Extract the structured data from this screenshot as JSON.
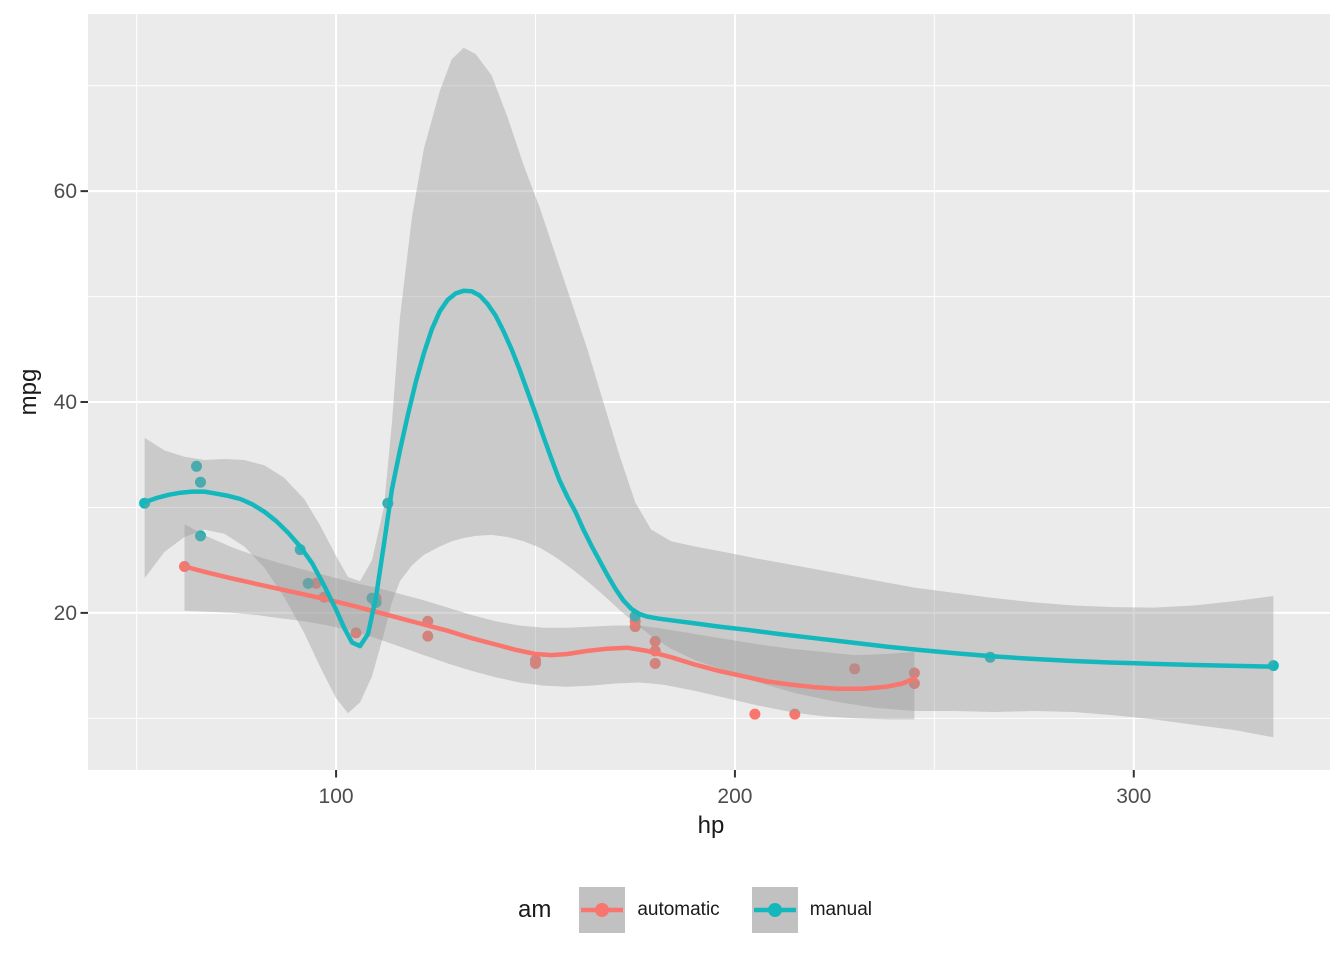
{
  "chart_data": {
    "type": "scatter",
    "title": "",
    "xlabel": "hp",
    "ylabel": "mpg",
    "xlim": [
      37.8,
      349.2
    ],
    "ylim": [
      5.1,
      76.8
    ],
    "x_ticks": [
      {
        "value": 100,
        "label": "100"
      },
      {
        "value": 200,
        "label": "200"
      },
      {
        "value": 300,
        "label": "300"
      }
    ],
    "y_ticks": [
      {
        "value": 20,
        "label": "20"
      },
      {
        "value": 40,
        "label": "40"
      },
      {
        "value": 60,
        "label": "60"
      }
    ],
    "x_minor": [
      50,
      150,
      250
    ],
    "y_minor": [
      10,
      30,
      50,
      70
    ],
    "grid": true,
    "legend_position": "bottom",
    "series": [
      {
        "name": "automatic",
        "color": "#F8766D",
        "points": [
          [
            110,
            21.4
          ],
          [
            175,
            18.7
          ],
          [
            105,
            18.1
          ],
          [
            245,
            14.3
          ],
          [
            62,
            24.4
          ],
          [
            95,
            22.8
          ],
          [
            123,
            19.2
          ],
          [
            123,
            17.8
          ],
          [
            180,
            16.4
          ],
          [
            180,
            17.3
          ],
          [
            180,
            15.2
          ],
          [
            205,
            10.4
          ],
          [
            215,
            10.4
          ],
          [
            230,
            14.7
          ],
          [
            150,
            15.5
          ],
          [
            150,
            15.2
          ],
          [
            245,
            13.3
          ],
          [
            175,
            19.2
          ],
          [
            97,
            21.5
          ]
        ],
        "smooth": [
          [
            62,
            24.4
          ],
          [
            68,
            23.8
          ],
          [
            74,
            23.25
          ],
          [
            80,
            22.75
          ],
          [
            86,
            22.25
          ],
          [
            92,
            21.75
          ],
          [
            98,
            21.25
          ],
          [
            104,
            20.7
          ],
          [
            110,
            20.1
          ],
          [
            116,
            19.5
          ],
          [
            122,
            18.9
          ],
          [
            128,
            18.3
          ],
          [
            134,
            17.6
          ],
          [
            140,
            17.0
          ],
          [
            145,
            16.5
          ],
          [
            150,
            16.1
          ],
          [
            154,
            16.0
          ],
          [
            158,
            16.1
          ],
          [
            163,
            16.4
          ],
          [
            168,
            16.6
          ],
          [
            173,
            16.7
          ],
          [
            178,
            16.4
          ],
          [
            184,
            15.8
          ],
          [
            190,
            15.1
          ],
          [
            196,
            14.5
          ],
          [
            202,
            14.0
          ],
          [
            208,
            13.5
          ],
          [
            214,
            13.2
          ],
          [
            220,
            12.95
          ],
          [
            226,
            12.8
          ],
          [
            232,
            12.8
          ],
          [
            238,
            13.0
          ],
          [
            242,
            13.3
          ],
          [
            245,
            13.8
          ]
        ],
        "ribbon": [
          [
            62,
            20.2,
            28.4
          ],
          [
            68,
            20.1,
            27.2
          ],
          [
            74,
            20.0,
            26.2
          ],
          [
            80,
            19.8,
            25.4
          ],
          [
            86,
            19.5,
            24.7
          ],
          [
            92,
            19.2,
            24.1
          ],
          [
            98,
            18.8,
            23.5
          ],
          [
            104,
            18.3,
            22.9
          ],
          [
            110,
            17.6,
            22.4
          ],
          [
            116,
            16.8,
            21.8
          ],
          [
            122,
            16.0,
            21.2
          ],
          [
            128,
            15.2,
            20.5
          ],
          [
            134,
            14.5,
            19.8
          ],
          [
            140,
            13.9,
            19.2
          ],
          [
            146,
            13.4,
            18.8
          ],
          [
            152,
            13.1,
            18.6
          ],
          [
            158,
            13.0,
            18.6
          ],
          [
            164,
            13.1,
            18.7
          ],
          [
            170,
            13.3,
            18.8
          ],
          [
            176,
            13.4,
            18.8
          ],
          [
            182,
            13.2,
            18.5
          ],
          [
            190,
            12.6,
            18.0
          ],
          [
            198,
            11.9,
            17.5
          ],
          [
            206,
            11.2,
            17.0
          ],
          [
            214,
            10.6,
            16.6
          ],
          [
            222,
            10.2,
            16.3
          ],
          [
            230,
            10.0,
            16.0
          ],
          [
            238,
            9.9,
            16.1
          ],
          [
            245,
            9.9,
            16.3
          ]
        ]
      },
      {
        "name": "manual",
        "color": "#14B8BC",
        "points": [
          [
            110,
            21.0
          ],
          [
            110,
            21.0
          ],
          [
            93,
            22.8
          ],
          [
            66,
            32.4
          ],
          [
            52,
            30.4
          ],
          [
            65,
            33.9
          ],
          [
            66,
            27.3
          ],
          [
            91,
            26.0
          ],
          [
            113,
            30.4
          ],
          [
            264,
            15.8
          ],
          [
            175,
            19.7
          ],
          [
            335,
            15.0
          ],
          [
            109,
            21.4
          ]
        ],
        "smooth": [
          [
            52,
            30.5
          ],
          [
            55,
            30.9
          ],
          [
            58,
            31.2
          ],
          [
            61,
            31.4
          ],
          [
            64,
            31.5
          ],
          [
            67,
            31.5
          ],
          [
            70,
            31.3
          ],
          [
            73,
            31.1
          ],
          [
            76,
            30.8
          ],
          [
            79,
            30.3
          ],
          [
            82,
            29.6
          ],
          [
            85,
            28.7
          ],
          [
            88,
            27.6
          ],
          [
            91,
            26.3
          ],
          [
            94,
            24.7
          ],
          [
            97,
            22.6
          ],
          [
            100,
            20.3
          ],
          [
            102,
            18.6
          ],
          [
            104,
            17.2
          ],
          [
            106,
            16.85
          ],
          [
            108,
            18.0
          ],
          [
            110,
            21.5
          ],
          [
            112,
            26.5
          ],
          [
            114,
            31.7
          ],
          [
            116,
            35.4
          ],
          [
            118,
            38.8
          ],
          [
            120,
            41.9
          ],
          [
            122,
            44.6
          ],
          [
            124,
            46.9
          ],
          [
            126,
            48.6
          ],
          [
            128,
            49.7
          ],
          [
            130,
            50.3
          ],
          [
            132,
            50.55
          ],
          [
            134,
            50.5
          ],
          [
            136,
            50.1
          ],
          [
            138,
            49.3
          ],
          [
            140,
            48.2
          ],
          [
            142,
            46.7
          ],
          [
            144,
            45.0
          ],
          [
            146,
            43.1
          ],
          [
            148,
            41.0
          ],
          [
            150,
            38.9
          ],
          [
            152,
            36.7
          ],
          [
            154,
            34.6
          ],
          [
            156,
            32.6
          ],
          [
            158,
            31.0
          ],
          [
            160,
            29.6
          ],
          [
            162,
            27.9
          ],
          [
            164,
            26.4
          ],
          [
            166,
            25.0
          ],
          [
            168,
            23.6
          ],
          [
            170,
            22.3
          ],
          [
            172,
            21.2
          ],
          [
            174,
            20.4
          ],
          [
            176,
            19.9
          ],
          [
            178,
            19.65
          ],
          [
            181,
            19.45
          ],
          [
            185,
            19.25
          ],
          [
            190,
            19.0
          ],
          [
            196,
            18.7
          ],
          [
            203,
            18.4
          ],
          [
            211,
            18.0
          ],
          [
            220,
            17.6
          ],
          [
            229,
            17.2
          ],
          [
            238,
            16.8
          ],
          [
            247,
            16.45
          ],
          [
            256,
            16.15
          ],
          [
            264,
            15.9
          ],
          [
            274,
            15.65
          ],
          [
            284,
            15.45
          ],
          [
            294,
            15.3
          ],
          [
            304,
            15.18
          ],
          [
            314,
            15.07
          ],
          [
            324,
            14.98
          ],
          [
            335,
            14.9
          ]
        ],
        "ribbon": [
          [
            52,
            23.3,
            36.6
          ],
          [
            57,
            25.8,
            35.4
          ],
          [
            62,
            27.2,
            34.8
          ],
          [
            67,
            27.9,
            34.5
          ],
          [
            72,
            27.5,
            34.6
          ],
          [
            77,
            26.3,
            34.5
          ],
          [
            82,
            24.3,
            34.0
          ],
          [
            87,
            21.5,
            32.8
          ],
          [
            92,
            18.1,
            30.8
          ],
          [
            96,
            14.9,
            28.3
          ],
          [
            100,
            11.9,
            25.4
          ],
          [
            103,
            10.5,
            23.4
          ],
          [
            106,
            11.5,
            23.0
          ],
          [
            109,
            14.0,
            25.0
          ],
          [
            112,
            18.0,
            30.0
          ],
          [
            114,
            21.0,
            38.0
          ],
          [
            116,
            23.0,
            48.0
          ],
          [
            119,
            24.5,
            57.5
          ],
          [
            122,
            25.5,
            64.0
          ],
          [
            126,
            26.3,
            69.5
          ],
          [
            129,
            26.8,
            72.5
          ],
          [
            132,
            27.1,
            73.6
          ],
          [
            135,
            27.3,
            73.0
          ],
          [
            139,
            27.4,
            71.0
          ],
          [
            143,
            27.2,
            67.0
          ],
          [
            147,
            26.8,
            62.5
          ],
          [
            151,
            26.2,
            58.5
          ],
          [
            155,
            25.3,
            54.0
          ],
          [
            159,
            24.2,
            49.5
          ],
          [
            163,
            23.0,
            45.0
          ],
          [
            167,
            21.7,
            40.0
          ],
          [
            171,
            20.3,
            35.0
          ],
          [
            175,
            19.0,
            30.5
          ],
          [
            179,
            17.8,
            27.9
          ],
          [
            184,
            16.6,
            26.8
          ],
          [
            190,
            15.5,
            26.3
          ],
          [
            197,
            14.6,
            25.8
          ],
          [
            205,
            13.5,
            25.2
          ],
          [
            215,
            12.4,
            24.5
          ],
          [
            225,
            11.6,
            23.8
          ],
          [
            235,
            11.0,
            23.1
          ],
          [
            245,
            10.7,
            22.4
          ],
          [
            255,
            10.7,
            21.9
          ],
          [
            265,
            10.6,
            21.4
          ],
          [
            275,
            10.7,
            21.0
          ],
          [
            285,
            10.6,
            20.7
          ],
          [
            295,
            10.3,
            20.55
          ],
          [
            305,
            9.9,
            20.5
          ],
          [
            315,
            9.4,
            20.7
          ],
          [
            325,
            8.9,
            21.1
          ],
          [
            335,
            8.2,
            21.6
          ]
        ]
      }
    ]
  },
  "styles": {
    "page_bg": "#FFFFFF",
    "panel_bg": "#EBEBEB",
    "grid_color": "#FFFFFF",
    "ribbon_color": "#999999",
    "ribbon_opacity": 0.4,
    "tick_mark_color": "#333333",
    "tick_label_color": "#4D4D4D",
    "axis_title_color": "#1A1A1A",
    "legend_key_bg": "#C1C1C1"
  },
  "legend": {
    "title": "am",
    "items": [
      {
        "label": "automatic"
      },
      {
        "label": "manual"
      }
    ]
  }
}
